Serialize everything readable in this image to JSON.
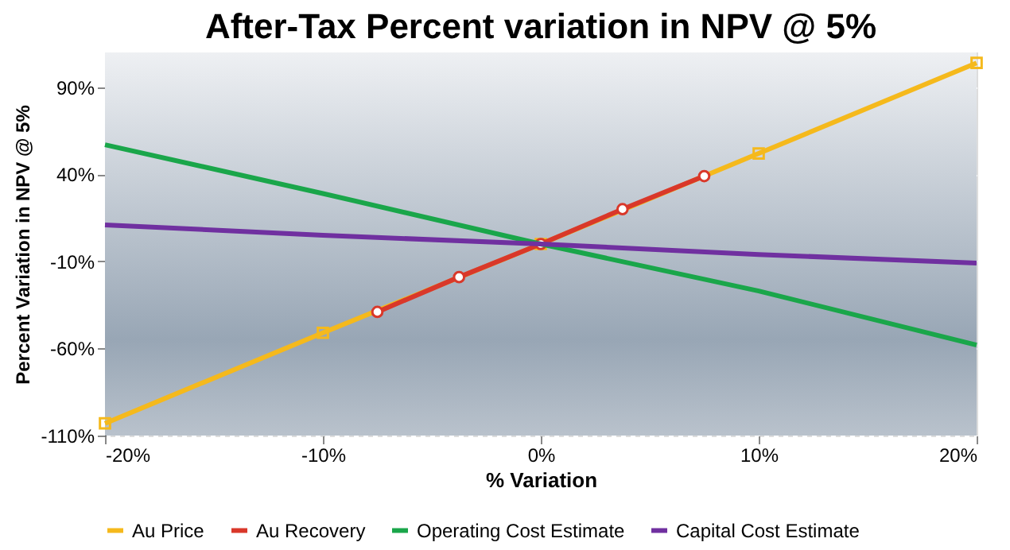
{
  "chart_data": {
    "type": "line",
    "title": "After-Tax Percent variation in NPV @ 5%",
    "xlabel": "% Variation",
    "ylabel": "Percent Variation in NPV @ 5%",
    "xlim": [
      -20,
      20
    ],
    "xticks": [
      {
        "value": -20,
        "label": "-20%"
      },
      {
        "value": -10,
        "label": "-10%"
      },
      {
        "value": 0,
        "label": "0%"
      },
      {
        "value": 10,
        "label": "10%"
      },
      {
        "value": 20,
        "label": "20%"
      }
    ],
    "ylim": [
      -110,
      110
    ],
    "yticks": [
      {
        "value": -110,
        "label": "-110%"
      },
      {
        "value": -60,
        "label": "-60%"
      },
      {
        "value": -10,
        "label": "-10%"
      },
      {
        "value": 40,
        "label": "40%"
      },
      {
        "value": 90,
        "label": "90%"
      }
    ],
    "grid": "y",
    "legend": "bottom",
    "line_style": "solid",
    "series": [
      {
        "name": "Au Price",
        "color": "#f5b91c",
        "marker": "square",
        "x": [
          -20,
          -10,
          0,
          10,
          20
        ],
        "values": [
          -103,
          -51,
          0,
          52,
          104
        ]
      },
      {
        "name": "Au Recovery",
        "color": "#d9382a",
        "marker": "circle",
        "x": [
          -7.5,
          -3.75,
          0,
          3.75,
          7.5
        ],
        "values": [
          -39,
          -19,
          0,
          20,
          39
        ]
      },
      {
        "name": "Operating Cost Estimate",
        "color": "#1aa64a",
        "marker": "none",
        "x": [
          -20,
          -10,
          0,
          10,
          20
        ],
        "values": [
          57,
          29,
          0,
          -27,
          -58
        ]
      },
      {
        "name": "Capital Cost Estimate",
        "color": "#7030a0",
        "marker": "none",
        "x": [
          -20,
          -10,
          0,
          10,
          20
        ],
        "values": [
          11,
          5,
          0,
          -6,
          -11
        ]
      }
    ]
  }
}
